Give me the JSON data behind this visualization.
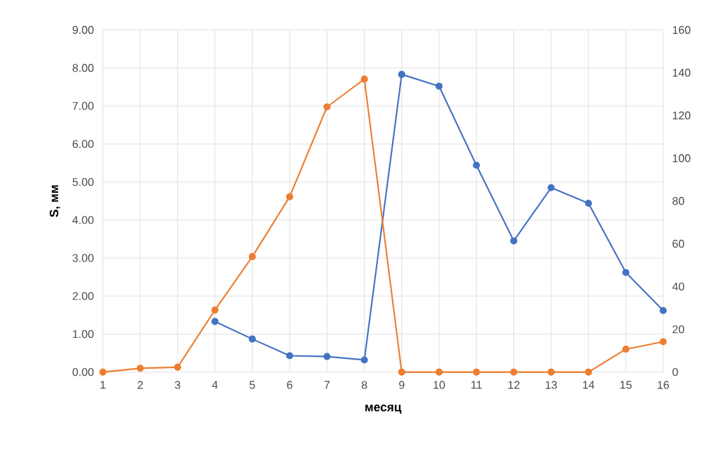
{
  "chart_data": {
    "type": "line",
    "xlabel": "месяц",
    "ylabel": "S, мм",
    "categories": [
      "1",
      "2",
      "3",
      "4",
      "5",
      "6",
      "7",
      "8",
      "9",
      "10",
      "11",
      "12",
      "13",
      "14",
      "15",
      "16"
    ],
    "series": [
      {
        "color": "#4472c4",
        "values": [
          null,
          null,
          null,
          1.33,
          0.87,
          0.43,
          0.41,
          0.32,
          7.83,
          7.52,
          5.44,
          3.45,
          4.85,
          4.44,
          2.62,
          1.62
        ]
      },
      {
        "color": "#ed7d31",
        "axis": "y2",
        "values": [
          0,
          1.8,
          2.3,
          29,
          54,
          82,
          124,
          137,
          0,
          0,
          0,
          0,
          0,
          0,
          10.7,
          14.2
        ]
      }
    ],
    "ylim": [
      0,
      9
    ],
    "yticks": [
      {
        "value": 0,
        "label": "0.00"
      },
      {
        "value": 1,
        "label": "1.00"
      },
      {
        "value": 2,
        "label": "2.00"
      },
      {
        "value": 3,
        "label": "3.00"
      },
      {
        "value": 4,
        "label": "4.00"
      },
      {
        "value": 5,
        "label": "5.00"
      },
      {
        "value": 6,
        "label": "6.00"
      },
      {
        "value": 7,
        "label": "7.00"
      },
      {
        "value": 8,
        "label": "8.00"
      },
      {
        "value": 9,
        "label": "9.00"
      }
    ],
    "y2lim": [
      0,
      160
    ],
    "y2ticks": [
      0,
      20,
      40,
      60,
      80,
      100,
      120,
      140,
      160
    ],
    "grid": true,
    "marker": "circle",
    "line_style": "solid"
  }
}
